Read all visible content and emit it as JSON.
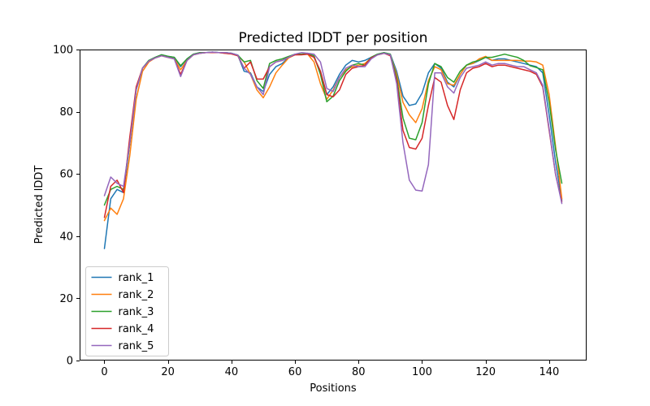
{
  "figure": {
    "background": "#ffffff",
    "spine_color": "#000000"
  },
  "chart_data": {
    "type": "line",
    "title": "Predicted lDDT per position",
    "xlabel": "Positions",
    "ylabel": "Predicted lDDT",
    "xlim": [
      -7.8,
      151.8
    ],
    "ylim": [
      0,
      100
    ],
    "x_ticks": [
      0,
      20,
      40,
      60,
      80,
      100,
      120,
      140
    ],
    "y_ticks": [
      0,
      20,
      40,
      60,
      80,
      100
    ],
    "grid": false,
    "legend_position": "lower left",
    "line_width": 1.5,
    "x": [
      0,
      2,
      4,
      6,
      8,
      10,
      12,
      14,
      16,
      18,
      20,
      22,
      24,
      26,
      28,
      30,
      32,
      34,
      36,
      38,
      40,
      42,
      44,
      46,
      48,
      50,
      52,
      54,
      56,
      58,
      60,
      62,
      64,
      66,
      68,
      70,
      72,
      74,
      76,
      78,
      80,
      82,
      84,
      86,
      88,
      90,
      92,
      94,
      96,
      98,
      100,
      102,
      104,
      106,
      108,
      110,
      112,
      114,
      116,
      118,
      120,
      122,
      124,
      126,
      128,
      130,
      132,
      134,
      136,
      138,
      140,
      142,
      144
    ],
    "series": [
      {
        "name": "rank_1",
        "color": "#1f77b4",
        "values": [
          36,
          52,
          55,
          54,
          70,
          87,
          94,
          96.5,
          97.5,
          98.3,
          97.8,
          97.5,
          94.5,
          97,
          98.5,
          99,
          99,
          99.2,
          99,
          99,
          98.8,
          98.2,
          93,
          92.5,
          88,
          86.5,
          92,
          94.5,
          95.5,
          97.5,
          98.5,
          98.5,
          98.5,
          97.5,
          93,
          85.5,
          88,
          92,
          95,
          96.5,
          96,
          96.5,
          97.5,
          98.5,
          99,
          98.5,
          93,
          85,
          82,
          82.5,
          86,
          92.5,
          95.5,
          94,
          89.5,
          88,
          92,
          95,
          95.5,
          96.5,
          97.5,
          96.5,
          97,
          97,
          96.5,
          96,
          95.5,
          95,
          94.5,
          92.5,
          79,
          64,
          51.5
        ]
      },
      {
        "name": "rank_2",
        "color": "#ff7f0e",
        "values": [
          45,
          49,
          47,
          52,
          66,
          84,
          93,
          96,
          97.3,
          98,
          97.5,
          97,
          93.5,
          96.5,
          98.3,
          98.8,
          99,
          99,
          99,
          98.8,
          98.6,
          98,
          96,
          92,
          87,
          84.5,
          88,
          92.5,
          95,
          97.3,
          98.3,
          98.5,
          98.5,
          96,
          89,
          84,
          87,
          91,
          93.5,
          94.5,
          95,
          95.5,
          97.3,
          98.3,
          98.8,
          98.3,
          92,
          83,
          79,
          76.5,
          81,
          90,
          94.5,
          93.5,
          89,
          88.5,
          92,
          95,
          95.5,
          97,
          97.8,
          96.5,
          96.5,
          96.5,
          96.5,
          96.5,
          96.3,
          96.3,
          96,
          95,
          85.5,
          69,
          52
        ]
      },
      {
        "name": "rank_3",
        "color": "#2ca02c",
        "values": [
          50,
          55,
          56,
          55,
          70,
          87,
          94,
          96.5,
          97.5,
          98.3,
          97.8,
          97.5,
          94.8,
          97,
          98.5,
          99,
          99,
          99.2,
          99,
          99,
          98.8,
          98.2,
          96,
          96.5,
          90,
          87.5,
          95.5,
          96.5,
          97,
          97.8,
          98.5,
          98.5,
          98.8,
          98,
          92,
          83.2,
          85,
          90,
          93,
          95,
          95.5,
          95,
          97.5,
          98.5,
          99,
          98.5,
          91,
          78,
          71.5,
          71,
          76.5,
          89,
          95.5,
          94.5,
          91,
          89.5,
          93,
          95,
          96,
          96.5,
          97.5,
          97.5,
          98,
          98.5,
          98,
          97.5,
          96.5,
          94.8,
          94.2,
          93.5,
          83,
          68,
          57
        ]
      },
      {
        "name": "rank_4",
        "color": "#d62728",
        "values": [
          46,
          56,
          58,
          54,
          72,
          88,
          94,
          96.3,
          97.3,
          98,
          97.5,
          97,
          92,
          96.5,
          98.3,
          98.8,
          99,
          99,
          99,
          98.8,
          98.6,
          98,
          94,
          96,
          90.5,
          90.5,
          94.5,
          96,
          96.5,
          97.5,
          98.3,
          98.3,
          98.5,
          97.5,
          93,
          85.5,
          84.8,
          87,
          92,
          94,
          94.5,
          95,
          97.3,
          98.3,
          98.8,
          98,
          90,
          74,
          68.5,
          68,
          71.5,
          82,
          91,
          89.5,
          82,
          77.5,
          87,
          92.5,
          94,
          94.5,
          95.5,
          94.5,
          95,
          95,
          94.5,
          94,
          93.5,
          93,
          92,
          88,
          74,
          60,
          51
        ]
      },
      {
        "name": "rank_5",
        "color": "#9467bd",
        "values": [
          53,
          59,
          57,
          56,
          70,
          87,
          94,
          96.3,
          97.3,
          98,
          97.5,
          97,
          91.3,
          96.5,
          98.3,
          98.8,
          99,
          99.2,
          99,
          99,
          98.8,
          98.2,
          94,
          92,
          88,
          85.5,
          94.5,
          96,
          96.5,
          97.5,
          98.5,
          99,
          98.8,
          98.5,
          96,
          87.5,
          86.5,
          91,
          94,
          95,
          94.5,
          94.5,
          97,
          98.3,
          98.8,
          98.3,
          89,
          70,
          58,
          54.8,
          54.5,
          63,
          92.5,
          92.5,
          88,
          86,
          91,
          94,
          94.5,
          95,
          96,
          95,
          95.5,
          95.5,
          95,
          94.5,
          94.5,
          93.5,
          92.5,
          88.5,
          74.5,
          60,
          50.5
        ]
      }
    ],
    "legend": {
      "labels": [
        "rank_1",
        "rank_2",
        "rank_3",
        "rank_4",
        "rank_5"
      ],
      "border_color": "#cccccc",
      "background": "#ffffff"
    }
  }
}
